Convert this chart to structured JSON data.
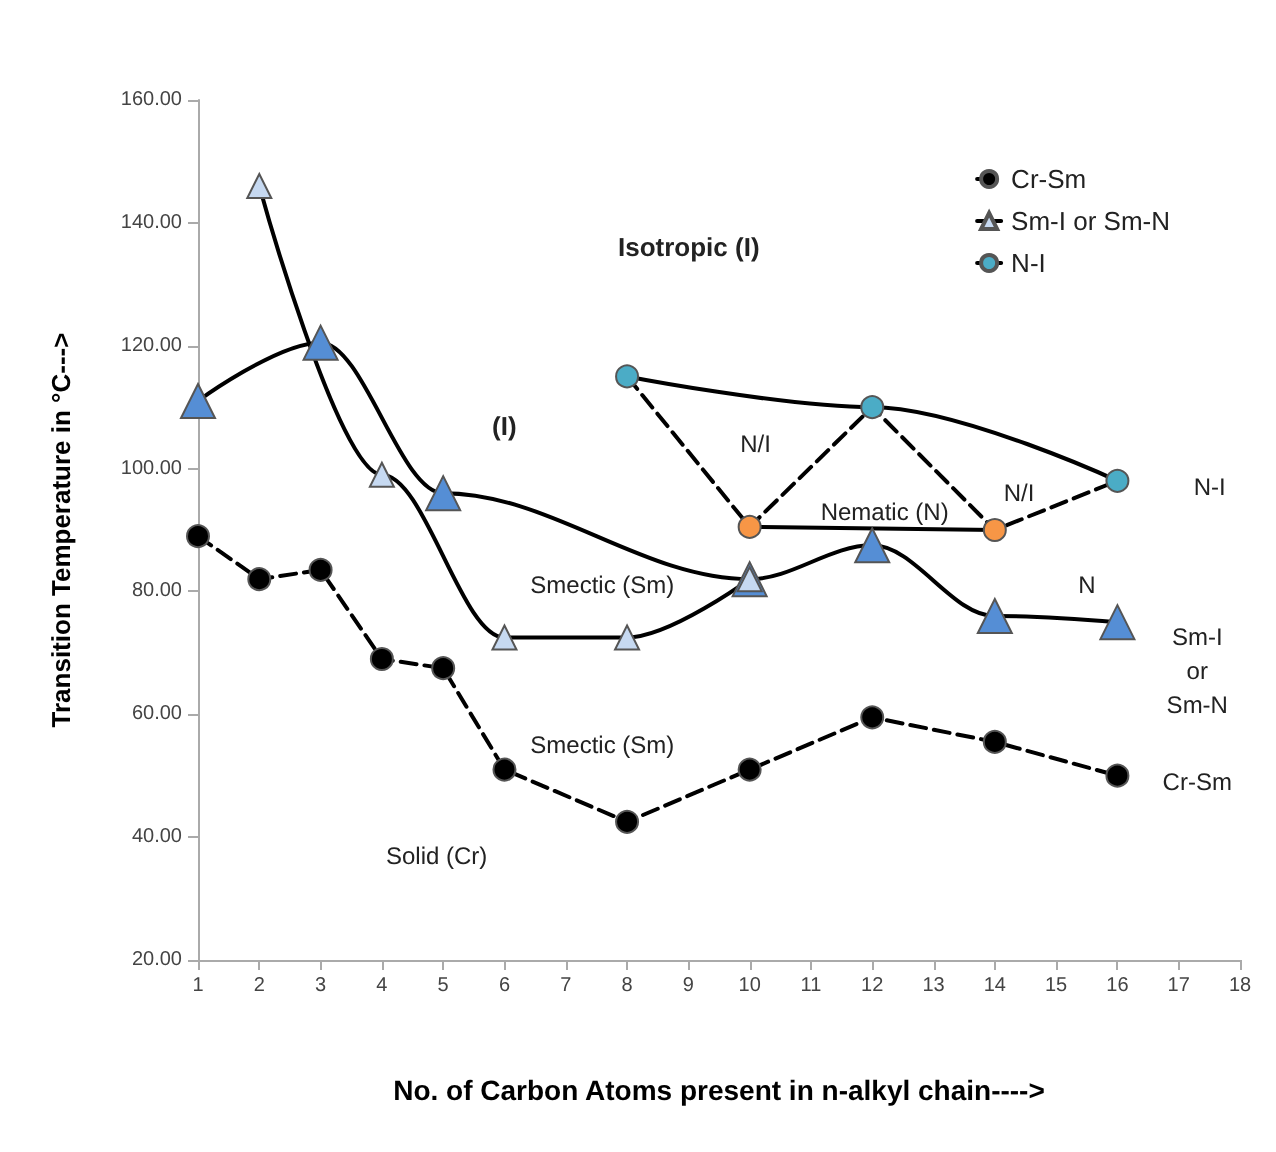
{
  "chart_data": {
    "type": "line",
    "xlabel": "No. of Carbon Atoms present in n-alkyl chain---->",
    "ylabel": "Transition Temperature in °C--->",
    "xlim": [
      1,
      18
    ],
    "xticks": [
      1,
      2,
      3,
      4,
      5,
      6,
      7,
      8,
      9,
      10,
      11,
      12,
      13,
      14,
      15,
      16,
      17,
      18
    ],
    "ylim": [
      20,
      160
    ],
    "yticks": [
      {
        "value": 20,
        "label": "20.00"
      },
      {
        "value": 40,
        "label": "40.00"
      },
      {
        "value": 60,
        "label": "60.00"
      },
      {
        "value": 80,
        "label": "80.00"
      },
      {
        "value": 100,
        "label": "100.00"
      },
      {
        "value": 120,
        "label": "120.00"
      },
      {
        "value": 140,
        "label": "140.00"
      },
      {
        "value": 160,
        "label": "160.00"
      }
    ],
    "grid": false,
    "legend": "top right",
    "series": [
      {
        "name": "Cr-Sm",
        "color": "#000000",
        "marker": "circle",
        "line_style": "dashed",
        "x": [
          1,
          2,
          3,
          4,
          5,
          6,
          8,
          10,
          12,
          14,
          16
        ],
        "values": [
          89,
          82,
          83.5,
          69,
          67.5,
          51,
          42.5,
          51,
          59.5,
          55.5,
          50
        ]
      },
      {
        "color": "#558ed5",
        "marker": "triangle",
        "line_style": "solid",
        "x": [
          1,
          3,
          5,
          10,
          12,
          14,
          16
        ],
        "values": [
          111,
          120.5,
          96,
          82,
          87.5,
          76,
          75
        ]
      },
      {
        "name": "Sm-I or Sm-N",
        "color": "#c6d9f1",
        "marker": "triangle",
        "line_style": "solid",
        "x": [
          2,
          4,
          6,
          8,
          10
        ],
        "values": [
          146,
          99,
          72.5,
          72.5,
          82
        ]
      },
      {
        "color": "#000000",
        "marker": "none",
        "line_style": "dashed",
        "x": [
          8,
          10,
          12,
          14,
          16
        ],
        "values": [
          115,
          90.5,
          110,
          90,
          98
        ]
      },
      {
        "color": "#f79646",
        "marker": "circle",
        "line_style": "solid",
        "x": [
          10,
          14
        ],
        "values": [
          90.5,
          90
        ]
      },
      {
        "name": "N-I",
        "color": "#4bacc6",
        "marker": "circle",
        "line_style": "solid",
        "x": [
          8,
          12,
          16
        ],
        "values": [
          115,
          110,
          98
        ]
      }
    ],
    "annotations": [
      "Isotropic (I)",
      "(I)",
      "N/I",
      "N/I",
      "Nematic (N)",
      "N",
      "Smectic (Sm)",
      "Smectic (Sm)",
      "Solid (Cr)",
      "N-I",
      "Sm-I\nor\nSm-N",
      "Cr-Sm"
    ]
  }
}
